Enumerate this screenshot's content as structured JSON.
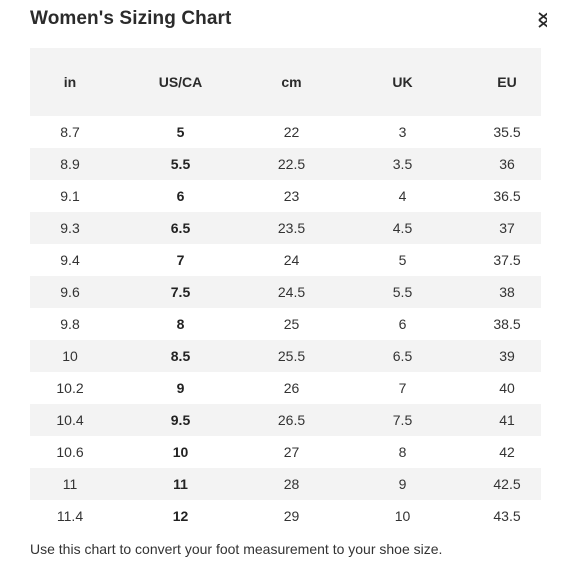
{
  "title": "Women's Sizing Chart",
  "close_icon": "close-icon",
  "columns": [
    "in",
    "US/CA",
    "cm",
    "UK",
    "EU"
  ],
  "rows": [
    [
      "8.7",
      "5",
      "22",
      "3",
      "35.5"
    ],
    [
      "8.9",
      "5.5",
      "22.5",
      "3.5",
      "36"
    ],
    [
      "9.1",
      "6",
      "23",
      "4",
      "36.5"
    ],
    [
      "9.3",
      "6.5",
      "23.5",
      "4.5",
      "37"
    ],
    [
      "9.4",
      "7",
      "24",
      "5",
      "37.5"
    ],
    [
      "9.6",
      "7.5",
      "24.5",
      "5.5",
      "38"
    ],
    [
      "9.8",
      "8",
      "25",
      "6",
      "38.5"
    ],
    [
      "10",
      "8.5",
      "25.5",
      "6.5",
      "39"
    ],
    [
      "10.2",
      "9",
      "26",
      "7",
      "40"
    ],
    [
      "10.4",
      "9.5",
      "26.5",
      "7.5",
      "41"
    ],
    [
      "10.6",
      "10",
      "27",
      "8",
      "42"
    ],
    [
      "11",
      "11",
      "28",
      "9",
      "42.5"
    ],
    [
      "11.4",
      "12",
      "29",
      "10",
      "43.5"
    ]
  ],
  "footnote": "Use this chart to convert your foot measurement to your shoe size.",
  "colors": {
    "stripe": "#f3f3f3",
    "text": "#2b2b2b"
  }
}
